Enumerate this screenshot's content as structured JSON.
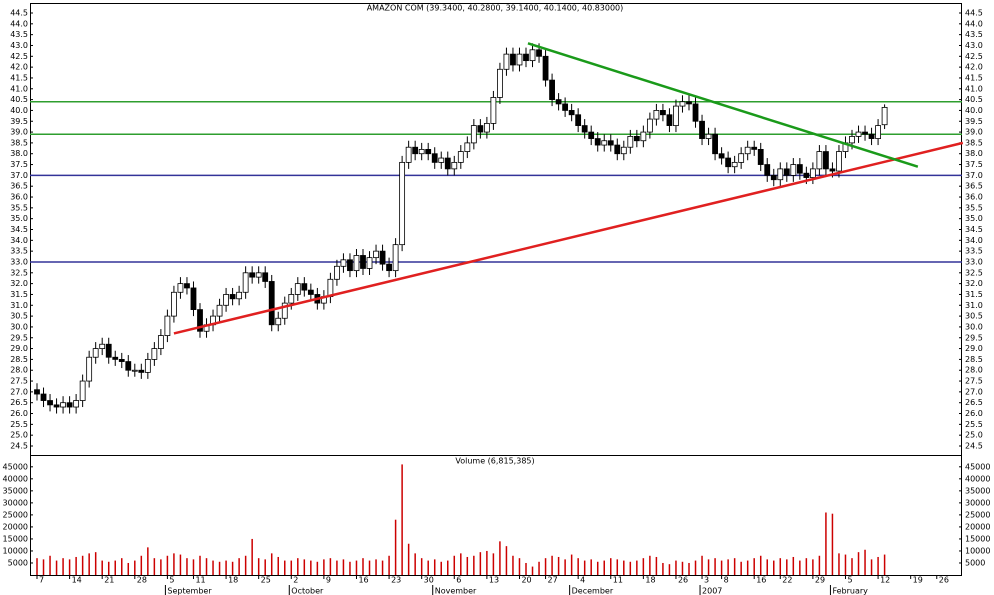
{
  "chart_data": [
    {
      "type": "candlestick",
      "title": "AMAZON COM (39.3400, 40.2800, 39.1400, 40.1400, 40.83000)",
      "categories": [
        "7",
        null,
        null,
        null,
        null,
        "14",
        null,
        null,
        null,
        null,
        "21",
        null,
        null,
        null,
        null,
        "28",
        null,
        null,
        null,
        null,
        "5",
        null,
        null,
        null,
        "11",
        null,
        null,
        null,
        null,
        "18",
        null,
        null,
        null,
        null,
        "25",
        null,
        null,
        null,
        null,
        "2",
        null,
        null,
        null,
        null,
        "9",
        null,
        null,
        null,
        null,
        "16",
        null,
        null,
        null,
        null,
        "23",
        null,
        null,
        null,
        null,
        "30",
        null,
        null,
        null,
        null,
        "6",
        null,
        null,
        null,
        null,
        "13",
        null,
        null,
        null,
        null,
        "20",
        null,
        null,
        null,
        "27",
        null,
        null,
        null,
        null,
        "4",
        null,
        null,
        null,
        null,
        "11",
        null,
        null,
        null,
        null,
        "18",
        null,
        null,
        null,
        null,
        "26",
        null,
        null,
        null,
        "3",
        null,
        null,
        "8",
        null,
        null,
        null,
        null,
        "16",
        null,
        null,
        null,
        "22",
        null,
        null,
        null,
        null,
        "29",
        null,
        null,
        null,
        null,
        "5",
        null,
        null,
        null,
        null,
        "12",
        null,
        null,
        null,
        null,
        "19",
        null,
        null,
        null,
        "26"
      ],
      "month_labels": [
        {
          "label": "September",
          "at": 20
        },
        {
          "label": "October",
          "at": 39
        },
        {
          "label": "November",
          "at": 61
        },
        {
          "label": "December",
          "at": 82
        },
        {
          "label": "2007",
          "at": 102
        },
        {
          "label": "February",
          "at": 122
        }
      ],
      "open": [
        27.1,
        26.9,
        26.6,
        26.4,
        26.3,
        26.5,
        26.3,
        26.6,
        27.5,
        28.6,
        29.0,
        29.2,
        28.6,
        28.5,
        28.4,
        28.0,
        28.0,
        27.9,
        28.5,
        29.0,
        29.6,
        30.5,
        31.6,
        32.0,
        31.8,
        30.8,
        29.8,
        30.1,
        30.5,
        31.0,
        31.5,
        31.3,
        31.6,
        32.5,
        32.3,
        32.5,
        32.1,
        30.1,
        30.4,
        31.1,
        31.5,
        32.0,
        31.7,
        31.5,
        31.1,
        31.4,
        32.2,
        32.8,
        33.1,
        32.6,
        33.3,
        32.7,
        33.2,
        33.5,
        32.9,
        32.6,
        33.8,
        37.6,
        38.3,
        38.0,
        38.2,
        38.0,
        37.6,
        37.8,
        37.3,
        37.6,
        38.1,
        38.5,
        39.3,
        39.0,
        39.4,
        40.6,
        41.9,
        42.6,
        42.1,
        42.6,
        42.3,
        42.8,
        42.5,
        41.4,
        40.5,
        40.3,
        40.0,
        39.8,
        39.3,
        39.0,
        38.7,
        38.4,
        38.6,
        38.4,
        38.0,
        38.3,
        38.8,
        38.6,
        39.0,
        39.6,
        40.0,
        39.8,
        39.3,
        40.2,
        40.4,
        40.3,
        39.5,
        38.7,
        38.9,
        38.0,
        37.8,
        37.4,
        37.6,
        38.0,
        38.3,
        38.2,
        37.5,
        37.0,
        36.8,
        37.3,
        37.0,
        37.5,
        37.1,
        36.9,
        37.3,
        38.1,
        37.3,
        37.2,
        38.1,
        38.5,
        38.8,
        39.0,
        38.9,
        38.7,
        39.34,
        null,
        null,
        null,
        null,
        null,
        null,
        null,
        null
      ],
      "high": [
        27.4,
        27.2,
        26.9,
        26.7,
        26.8,
        26.8,
        26.9,
        27.8,
        28.9,
        29.3,
        29.5,
        29.5,
        28.9,
        28.8,
        28.7,
        28.3,
        28.3,
        28.8,
        29.3,
        29.9,
        30.8,
        31.9,
        32.3,
        32.3,
        32.1,
        31.1,
        30.4,
        30.8,
        31.3,
        31.8,
        31.8,
        31.9,
        32.8,
        32.8,
        32.8,
        32.8,
        32.4,
        30.7,
        31.4,
        31.8,
        32.3,
        32.3,
        32.0,
        31.8,
        31.7,
        32.5,
        33.1,
        33.4,
        33.4,
        33.6,
        33.6,
        33.5,
        33.8,
        33.8,
        33.2,
        34.1,
        37.9,
        38.6,
        38.6,
        38.5,
        38.5,
        38.3,
        38.1,
        38.1,
        37.9,
        38.4,
        38.8,
        39.6,
        39.6,
        39.7,
        40.9,
        42.2,
        42.9,
        42.9,
        42.9,
        42.9,
        43.1,
        43.1,
        42.8,
        41.7,
        40.8,
        40.6,
        40.3,
        40.1,
        39.6,
        39.3,
        39.0,
        38.9,
        38.9,
        38.7,
        38.6,
        39.1,
        39.1,
        39.3,
        39.9,
        40.3,
        40.3,
        40.1,
        40.5,
        40.7,
        40.7,
        40.6,
        39.8,
        39.2,
        39.2,
        38.3,
        38.1,
        37.9,
        38.3,
        38.6,
        38.6,
        38.5,
        37.8,
        37.3,
        37.6,
        37.6,
        37.8,
        37.8,
        37.4,
        37.6,
        38.4,
        38.4,
        37.6,
        38.4,
        38.8,
        39.1,
        39.3,
        39.3,
        39.2,
        39.6,
        40.28,
        null,
        null,
        null,
        null,
        null,
        null,
        null,
        null
      ],
      "low": [
        26.6,
        26.3,
        26.1,
        26.0,
        26.0,
        26.0,
        26.0,
        26.3,
        27.2,
        28.3,
        28.7,
        28.3,
        28.2,
        28.1,
        27.7,
        27.7,
        27.6,
        27.6,
        28.2,
        28.7,
        29.3,
        30.2,
        31.3,
        31.5,
        30.5,
        29.5,
        29.5,
        29.8,
        30.2,
        30.7,
        31.0,
        31.0,
        31.3,
        32.0,
        32.0,
        31.8,
        29.8,
        29.8,
        30.1,
        30.8,
        31.2,
        31.4,
        31.2,
        30.8,
        30.8,
        31.1,
        31.9,
        32.5,
        32.3,
        32.3,
        32.4,
        32.4,
        32.9,
        32.6,
        32.3,
        32.3,
        33.5,
        37.3,
        37.7,
        37.7,
        37.7,
        37.3,
        37.3,
        37.0,
        37.0,
        37.3,
        37.8,
        38.2,
        38.7,
        38.7,
        39.1,
        40.3,
        41.6,
        41.8,
        41.8,
        42.0,
        42.0,
        42.2,
        41.1,
        40.2,
        40.0,
        39.7,
        39.5,
        39.0,
        38.7,
        38.4,
        38.1,
        38.1,
        38.1,
        37.7,
        37.7,
        38.0,
        38.3,
        38.3,
        38.7,
        39.3,
        39.5,
        39.0,
        39.0,
        39.9,
        40.0,
        39.2,
        38.4,
        38.4,
        37.7,
        37.5,
        37.1,
        37.1,
        37.3,
        37.7,
        37.9,
        37.2,
        36.7,
        36.5,
        36.5,
        36.7,
        36.7,
        36.8,
        36.6,
        36.6,
        37.0,
        37.0,
        36.9,
        36.9,
        37.8,
        38.2,
        38.5,
        38.6,
        38.4,
        38.4,
        39.14,
        null,
        null,
        null,
        null,
        null,
        null,
        null,
        null
      ],
      "close": [
        26.9,
        26.6,
        26.4,
        26.3,
        26.5,
        26.3,
        26.6,
        27.5,
        28.6,
        29.0,
        29.2,
        28.6,
        28.5,
        28.4,
        28.0,
        28.0,
        27.9,
        28.5,
        29.0,
        29.6,
        30.5,
        31.6,
        32.0,
        31.8,
        30.8,
        29.8,
        30.1,
        30.5,
        31.0,
        31.5,
        31.3,
        31.6,
        32.5,
        32.3,
        32.5,
        32.1,
        30.1,
        30.4,
        31.1,
        31.5,
        32.0,
        31.7,
        31.5,
        31.1,
        31.4,
        32.2,
        32.8,
        33.1,
        32.6,
        33.3,
        32.7,
        33.2,
        33.5,
        32.9,
        32.6,
        33.8,
        37.6,
        38.3,
        38.0,
        38.2,
        38.0,
        37.6,
        37.8,
        37.3,
        37.6,
        38.1,
        38.5,
        39.3,
        39.0,
        39.4,
        40.6,
        41.9,
        42.6,
        42.1,
        42.6,
        42.3,
        42.8,
        42.5,
        41.4,
        40.5,
        40.3,
        40.0,
        39.8,
        39.3,
        39.0,
        38.7,
        38.4,
        38.6,
        38.4,
        38.0,
        38.3,
        38.8,
        38.6,
        39.0,
        39.6,
        40.0,
        39.8,
        39.3,
        40.2,
        40.4,
        40.3,
        39.5,
        38.7,
        38.9,
        38.0,
        37.8,
        37.4,
        37.6,
        38.0,
        38.3,
        38.2,
        37.5,
        37.0,
        36.8,
        37.3,
        37.0,
        37.5,
        37.1,
        36.9,
        37.3,
        38.1,
        37.3,
        37.2,
        38.1,
        38.5,
        38.8,
        39.0,
        38.9,
        38.7,
        39.3,
        40.14,
        null,
        null,
        null,
        null,
        null,
        null,
        null,
        null
      ],
      "up_color": "#ffffff",
      "down_color": "#000000",
      "ylim": [
        24.5,
        44.5
      ],
      "yticks": [
        24.5,
        {
          "value": 25,
          "label": "25.0"
        },
        25.5,
        {
          "value": 26,
          "label": "26.0"
        },
        26.5,
        {
          "value": 27,
          "label": "27.0"
        },
        27.5,
        {
          "value": 28,
          "label": "28.0"
        },
        28.5,
        {
          "value": 29,
          "label": "29.0"
        },
        29.5,
        {
          "value": 30,
          "label": "30.0"
        },
        30.5,
        {
          "value": 31,
          "label": "31.0"
        },
        31.5,
        {
          "value": 32,
          "label": "32.0"
        },
        32.5,
        {
          "value": 33,
          "label": "33.0"
        },
        33.5,
        {
          "value": 34,
          "label": "34.0"
        },
        34.5,
        {
          "value": 35,
          "label": "35.0"
        },
        35.5,
        {
          "value": 36,
          "label": "36.0"
        },
        36.5,
        {
          "value": 37,
          "label": "37.0"
        },
        37.5,
        {
          "value": 38,
          "label": "38.0"
        },
        38.5,
        {
          "value": 39,
          "label": "39.0"
        },
        39.5,
        {
          "value": 40,
          "label": "40.0"
        },
        40.5,
        {
          "value": 41,
          "label": "41.0"
        },
        41.5,
        {
          "value": 42,
          "label": "42.0"
        },
        42.5,
        {
          "value": 43,
          "label": "43.0"
        },
        43.5,
        {
          "value": 44,
          "label": "44.0"
        },
        44.5
      ],
      "hlines": [
        {
          "value": 40.4,
          "color": "#2e9e2e"
        },
        {
          "value": 38.9,
          "color": "#2e9e2e"
        },
        {
          "value": 37,
          "color": "#333399"
        },
        {
          "value": 33,
          "color": "#333399"
        }
      ],
      "trendlines": [
        {
          "x": [
            21,
            142
          ],
          "y": [
            29.7,
            38.5
          ],
          "color": "#e02020"
        },
        {
          "x": [
            75.3,
            135.1
          ],
          "y": [
            43.1,
            37.4
          ],
          "color": "#1a9a1a"
        }
      ]
    },
    {
      "type": "bar",
      "title": "Volume (6,815,385)",
      "values": [
        7000,
        6500,
        8000,
        6000,
        7000,
        6500,
        7500,
        8000,
        9000,
        9500,
        6000,
        5500,
        6000,
        7000,
        5000,
        6000,
        8000,
        11500,
        7000,
        6500,
        8000,
        9000,
        8500,
        7000,
        6500,
        8000,
        7000,
        6000,
        5500,
        6000,
        5500,
        7000,
        8000,
        15000,
        7000,
        6500,
        9000,
        7500,
        6000,
        6000,
        7000,
        6500,
        6000,
        5500,
        6500,
        7000,
        6000,
        6500,
        5500,
        6000,
        7000,
        6000,
        6500,
        6000,
        8000,
        23000,
        46000,
        13000,
        9000,
        7000,
        6000,
        6500,
        5500,
        6000,
        8000,
        9000,
        7500,
        8000,
        9500,
        10000,
        9000,
        14000,
        12000,
        8000,
        7000,
        5000,
        3500,
        5500,
        7000,
        8000,
        7500,
        6500,
        8500,
        7000,
        6000,
        6500,
        5500,
        6000,
        7000,
        6500,
        6000,
        5500,
        6000,
        7000,
        8000,
        7500,
        5000,
        4500,
        6000,
        5500,
        5000,
        6000,
        8000,
        6500,
        7000,
        6000,
        6500,
        7000,
        5500,
        6000,
        7000,
        8000,
        6500,
        6000,
        7000,
        6500,
        7500,
        6000,
        7000,
        6500,
        8000,
        26000,
        25500,
        9000,
        8500,
        7000,
        9500,
        10500,
        6500,
        7500,
        8500,
        null,
        null,
        null,
        null,
        null,
        null,
        null,
        null
      ],
      "color": "#cc0000",
      "ylim": [
        0,
        47000
      ],
      "yticks": [
        5000,
        10000,
        15000,
        20000,
        25000,
        30000,
        35000,
        40000,
        45000
      ]
    }
  ]
}
